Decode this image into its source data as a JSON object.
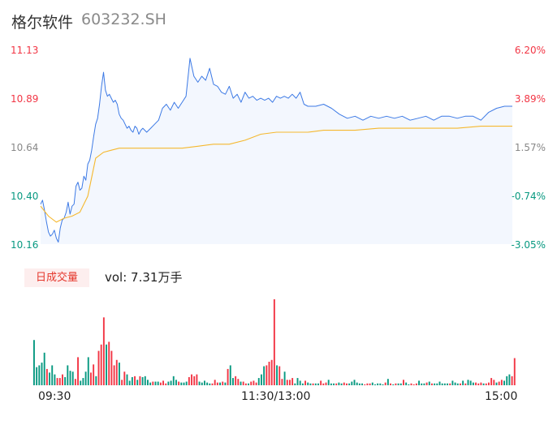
{
  "header": {
    "name": "格尔软件",
    "code": "603232.SH"
  },
  "volume_panel": {
    "tag": "日成交量",
    "label": "vol: 7.31万手"
  },
  "colors": {
    "up": "#f23645",
    "down": "#089981",
    "price_line": "#3d7ae5",
    "avg_line": "#f5b82e",
    "neutral": "#888888"
  },
  "chart_data": [
    {
      "type": "line",
      "title": "",
      "price_ticks": [
        "11.13",
        "10.89",
        "10.64",
        "10.40",
        "10.16"
      ],
      "percent_ticks": [
        "6.20%",
        "3.89%",
        "1.57%",
        "-0.74%",
        "-3.05%"
      ],
      "x_ticks": [
        "09:30",
        "11:30/13:00",
        "15:00"
      ],
      "ylim": [
        10.16,
        11.13
      ],
      "series": [
        {
          "role": "price",
          "x_minutes": [
            0,
            1,
            2,
            3,
            4,
            5,
            6,
            7,
            8,
            9,
            10,
            11,
            12,
            13,
            14,
            15,
            16,
            17,
            18,
            19,
            20,
            21,
            22,
            23,
            24,
            25,
            26,
            27,
            28,
            29,
            30,
            31,
            32,
            33,
            34,
            35,
            36,
            37,
            38,
            39,
            40,
            41,
            42,
            43,
            44,
            45,
            46,
            47,
            48,
            49,
            50,
            51,
            52,
            54,
            56,
            58,
            60,
            62,
            64,
            66,
            68,
            70,
            72,
            74,
            76,
            78,
            80,
            82,
            84,
            86,
            88,
            90,
            92,
            94,
            96,
            98,
            100,
            102,
            104,
            106,
            108,
            110,
            112,
            114,
            116,
            118,
            120,
            122,
            124,
            126,
            128,
            130,
            132,
            134,
            136,
            140,
            144,
            148,
            152,
            156,
            160,
            164,
            168,
            172,
            176,
            180,
            184,
            188,
            192,
            196,
            200,
            204,
            208,
            212,
            216,
            220,
            224,
            228,
            232,
            236,
            240
          ],
          "values": [
            10.36,
            10.38,
            10.33,
            10.27,
            10.22,
            10.2,
            10.21,
            10.23,
            10.19,
            10.17,
            10.24,
            10.28,
            10.29,
            10.32,
            10.37,
            10.31,
            10.35,
            10.36,
            10.45,
            10.47,
            10.43,
            10.44,
            10.5,
            10.48,
            10.56,
            10.58,
            10.63,
            10.7,
            10.76,
            10.79,
            10.86,
            10.95,
            11.02,
            10.93,
            10.9,
            10.91,
            10.89,
            10.87,
            10.88,
            10.86,
            10.81,
            10.79,
            10.78,
            10.76,
            10.74,
            10.75,
            10.73,
            10.72,
            10.75,
            10.74,
            10.71,
            10.73,
            10.74,
            10.72,
            10.74,
            10.76,
            10.78,
            10.84,
            10.86,
            10.83,
            10.87,
            10.84,
            10.87,
            10.9,
            11.09,
            11.0,
            10.97,
            11.0,
            10.98,
            11.04,
            10.96,
            10.95,
            10.92,
            10.91,
            10.95,
            10.89,
            10.91,
            10.87,
            10.92,
            10.89,
            10.9,
            10.88,
            10.89,
            10.88,
            10.89,
            10.87,
            10.9,
            10.89,
            10.9,
            10.89,
            10.91,
            10.89,
            10.92,
            10.86,
            10.85,
            10.85,
            10.86,
            10.84,
            10.81,
            10.79,
            10.8,
            10.78,
            10.8,
            10.79,
            10.8,
            10.79,
            10.8,
            10.78,
            10.79,
            10.8,
            10.78,
            10.8,
            10.8,
            10.79,
            10.8,
            10.8,
            10.78,
            10.82,
            10.84,
            10.85,
            10.85
          ]
        },
        {
          "role": "average",
          "x_minutes": [
            0,
            4,
            8,
            12,
            16,
            20,
            24,
            28,
            32,
            36,
            40,
            48,
            60,
            72,
            80,
            88,
            96,
            104,
            112,
            120,
            124,
            128,
            136,
            144,
            152,
            160,
            172,
            180,
            192,
            200,
            212,
            224,
            232,
            240
          ],
          "values": [
            10.35,
            10.3,
            10.27,
            10.29,
            10.3,
            10.32,
            10.4,
            10.59,
            10.62,
            10.63,
            10.64,
            10.64,
            10.64,
            10.64,
            10.65,
            10.66,
            10.66,
            10.68,
            10.71,
            10.72,
            10.72,
            10.72,
            10.72,
            10.73,
            10.73,
            10.73,
            10.74,
            10.74,
            10.74,
            10.74,
            10.74,
            10.75,
            10.75,
            10.75
          ]
        }
      ]
    },
    {
      "type": "bar",
      "title": "日成交量",
      "x_ticks": [
        "09:30",
        "11:30/13:00",
        "15:00"
      ],
      "volumes": [
        50,
        20,
        22,
        25,
        36,
        18,
        14,
        22,
        12,
        8,
        8,
        12,
        9,
        22,
        16,
        15,
        7,
        31,
        5,
        8,
        15,
        31,
        14,
        23,
        10,
        38,
        45,
        75,
        45,
        48,
        38,
        22,
        28,
        25,
        6,
        15,
        12,
        5,
        9,
        10,
        6,
        10,
        9,
        10,
        6,
        3,
        4,
        4,
        4,
        3,
        5,
        2,
        4,
        5,
        10,
        6,
        4,
        3,
        3,
        4,
        9,
        12,
        10,
        12,
        4,
        3,
        5,
        3,
        2,
        2,
        6,
        3,
        3,
        4,
        3,
        18,
        22,
        8,
        10,
        7,
        4,
        4,
        2,
        2,
        4,
        5,
        3,
        8,
        12,
        21,
        22,
        26,
        28,
        95,
        22,
        21,
        7,
        15,
        6,
        6,
        8,
        2,
        8,
        5,
        2,
        5,
        3,
        2,
        2,
        2,
        2,
        5,
        2,
        3,
        6,
        2,
        2,
        2,
        3,
        2,
        3,
        2,
        2,
        4,
        6,
        3,
        2,
        2,
        1,
        2,
        2,
        3,
        1,
        2,
        2,
        1,
        3,
        7,
        2,
        1,
        2,
        2,
        2,
        6,
        3,
        1,
        2,
        1,
        2,
        5,
        2,
        2,
        3,
        4,
        2,
        2,
        2,
        4,
        2,
        2,
        2,
        2,
        5,
        3,
        2,
        2,
        5,
        2,
        6,
        5,
        3,
        3,
        2,
        3,
        2,
        2,
        3,
        8,
        6,
        3,
        4,
        6,
        5,
        10,
        12,
        10,
        30
      ],
      "directions": "ddddduddduuudddduudddduuduuuduuuuduudddududdddudduuudddduddduuuuddddduuudududduuduuduuuddduuuuduuduuudddduddudduuudddudduudddddduuudddddudududdudduuudddududdddddudddududdduuuduuuuduuddduuddudduu",
      "total_label": "vol: 7.31万手"
    }
  ]
}
